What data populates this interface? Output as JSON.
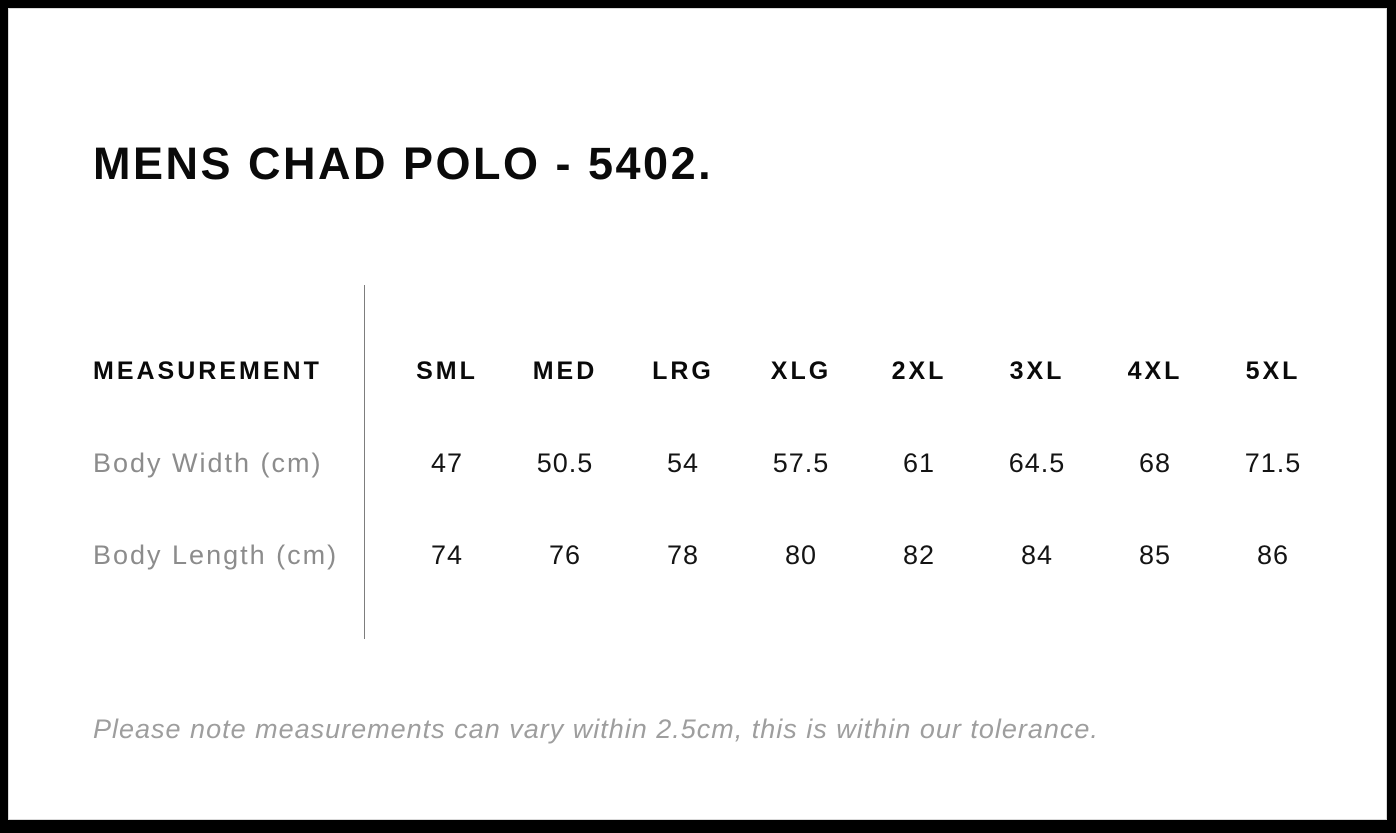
{
  "page": {
    "title": "MENS CHAD POLO - 5402.",
    "footnote": "Please note measurements can vary within 2.5cm, this is within our tolerance."
  },
  "size_chart": {
    "label_header": "MEASUREMENT",
    "size_headers": [
      "SML",
      "MED",
      "LRG",
      "XLG",
      "2XL",
      "3XL",
      "4XL",
      "5XL"
    ],
    "rows": [
      {
        "label": "Body Width (cm)",
        "values": [
          "47",
          "50.5",
          "54",
          "57.5",
          "61",
          "64.5",
          "68",
          "71.5"
        ]
      },
      {
        "label": "Body Length (cm)",
        "values": [
          "74",
          "76",
          "78",
          "80",
          "82",
          "84",
          "85",
          "86"
        ]
      }
    ]
  },
  "colors": {
    "background": "#ffffff",
    "frame_border": "#000000",
    "text_primary": "#0a0a0a",
    "row_label_gray": "#8c8c8c",
    "footnote_gray": "#9e9e9e",
    "divider_gray": "#7d7d7d"
  }
}
